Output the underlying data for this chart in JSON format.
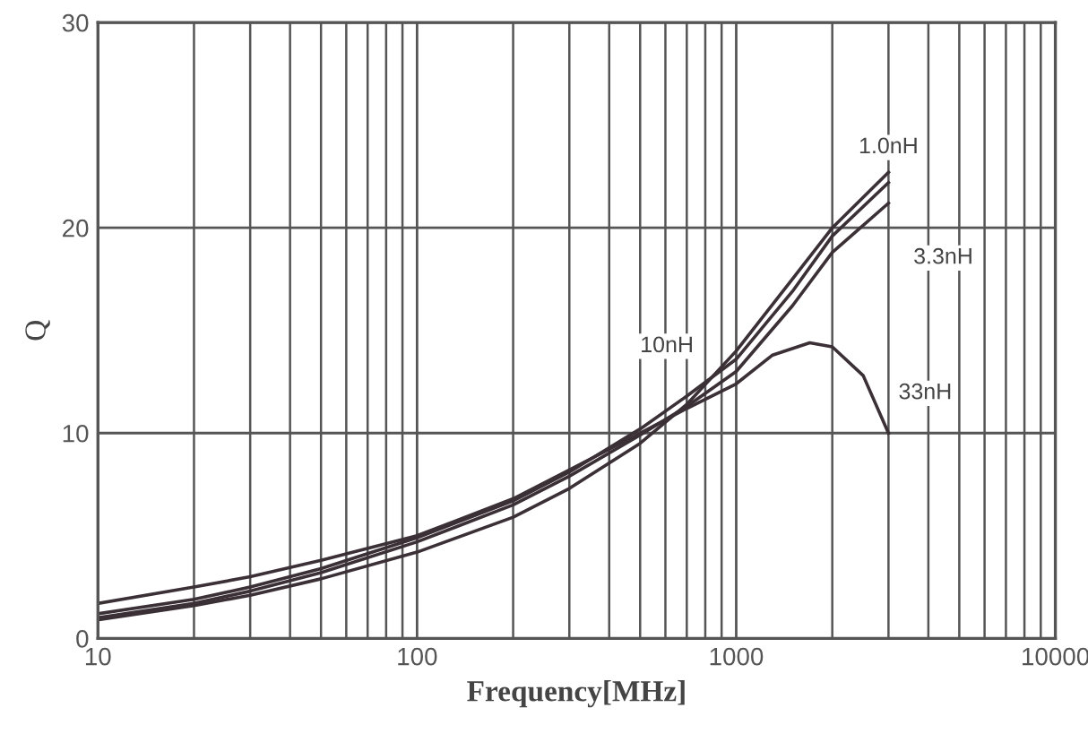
{
  "chart_data": {
    "type": "line",
    "xlabel": "Frequency[MHz]",
    "ylabel": "Q",
    "log": "x",
    "xlim": [
      10,
      10000
    ],
    "xticks": [
      10,
      100,
      1000,
      10000
    ],
    "ylim": [
      0,
      30
    ],
    "yticks": [
      0,
      10,
      20,
      30
    ],
    "grid": true,
    "marker": "none",
    "line_style": "solid",
    "series": [
      {
        "name": "1.0nH",
        "color": "#3a3035",
        "x": [
          10,
          20,
          30,
          50,
          100,
          200,
          300,
          500,
          700,
          1000,
          1500,
          2000,
          3000
        ],
        "values": [
          0.9,
          1.6,
          2.1,
          2.9,
          4.2,
          5.9,
          7.3,
          9.5,
          11.4,
          14.0,
          17.5,
          20.0,
          22.7
        ]
      },
      {
        "name": "3.3nH",
        "color": "#3a3035",
        "x": [
          10,
          20,
          30,
          50,
          100,
          200,
          300,
          500,
          700,
          1000,
          1500,
          2000,
          3000
        ],
        "values": [
          1.0,
          1.7,
          2.3,
          3.2,
          4.7,
          6.5,
          7.9,
          9.9,
          11.3,
          13.0,
          16.2,
          18.8,
          21.2
        ]
      },
      {
        "name": "10nH",
        "color": "#3a3035",
        "x": [
          10,
          20,
          30,
          50,
          100,
          200,
          300,
          500,
          700,
          1000,
          1500,
          2000,
          3000
        ],
        "values": [
          1.2,
          1.9,
          2.5,
          3.4,
          4.9,
          6.7,
          8.1,
          10.2,
          11.8,
          13.6,
          16.9,
          19.6,
          22.2
        ]
      },
      {
        "name": "33nH",
        "color": "#3a3035",
        "x": [
          10,
          20,
          30,
          50,
          100,
          200,
          300,
          500,
          700,
          1000,
          1300,
          1700,
          2000,
          2500,
          3000
        ],
        "values": [
          1.7,
          2.5,
          3.0,
          3.8,
          5.0,
          6.8,
          8.2,
          10.0,
          11.2,
          12.4,
          13.8,
          14.4,
          14.2,
          12.8,
          10.0
        ]
      }
    ]
  }
}
